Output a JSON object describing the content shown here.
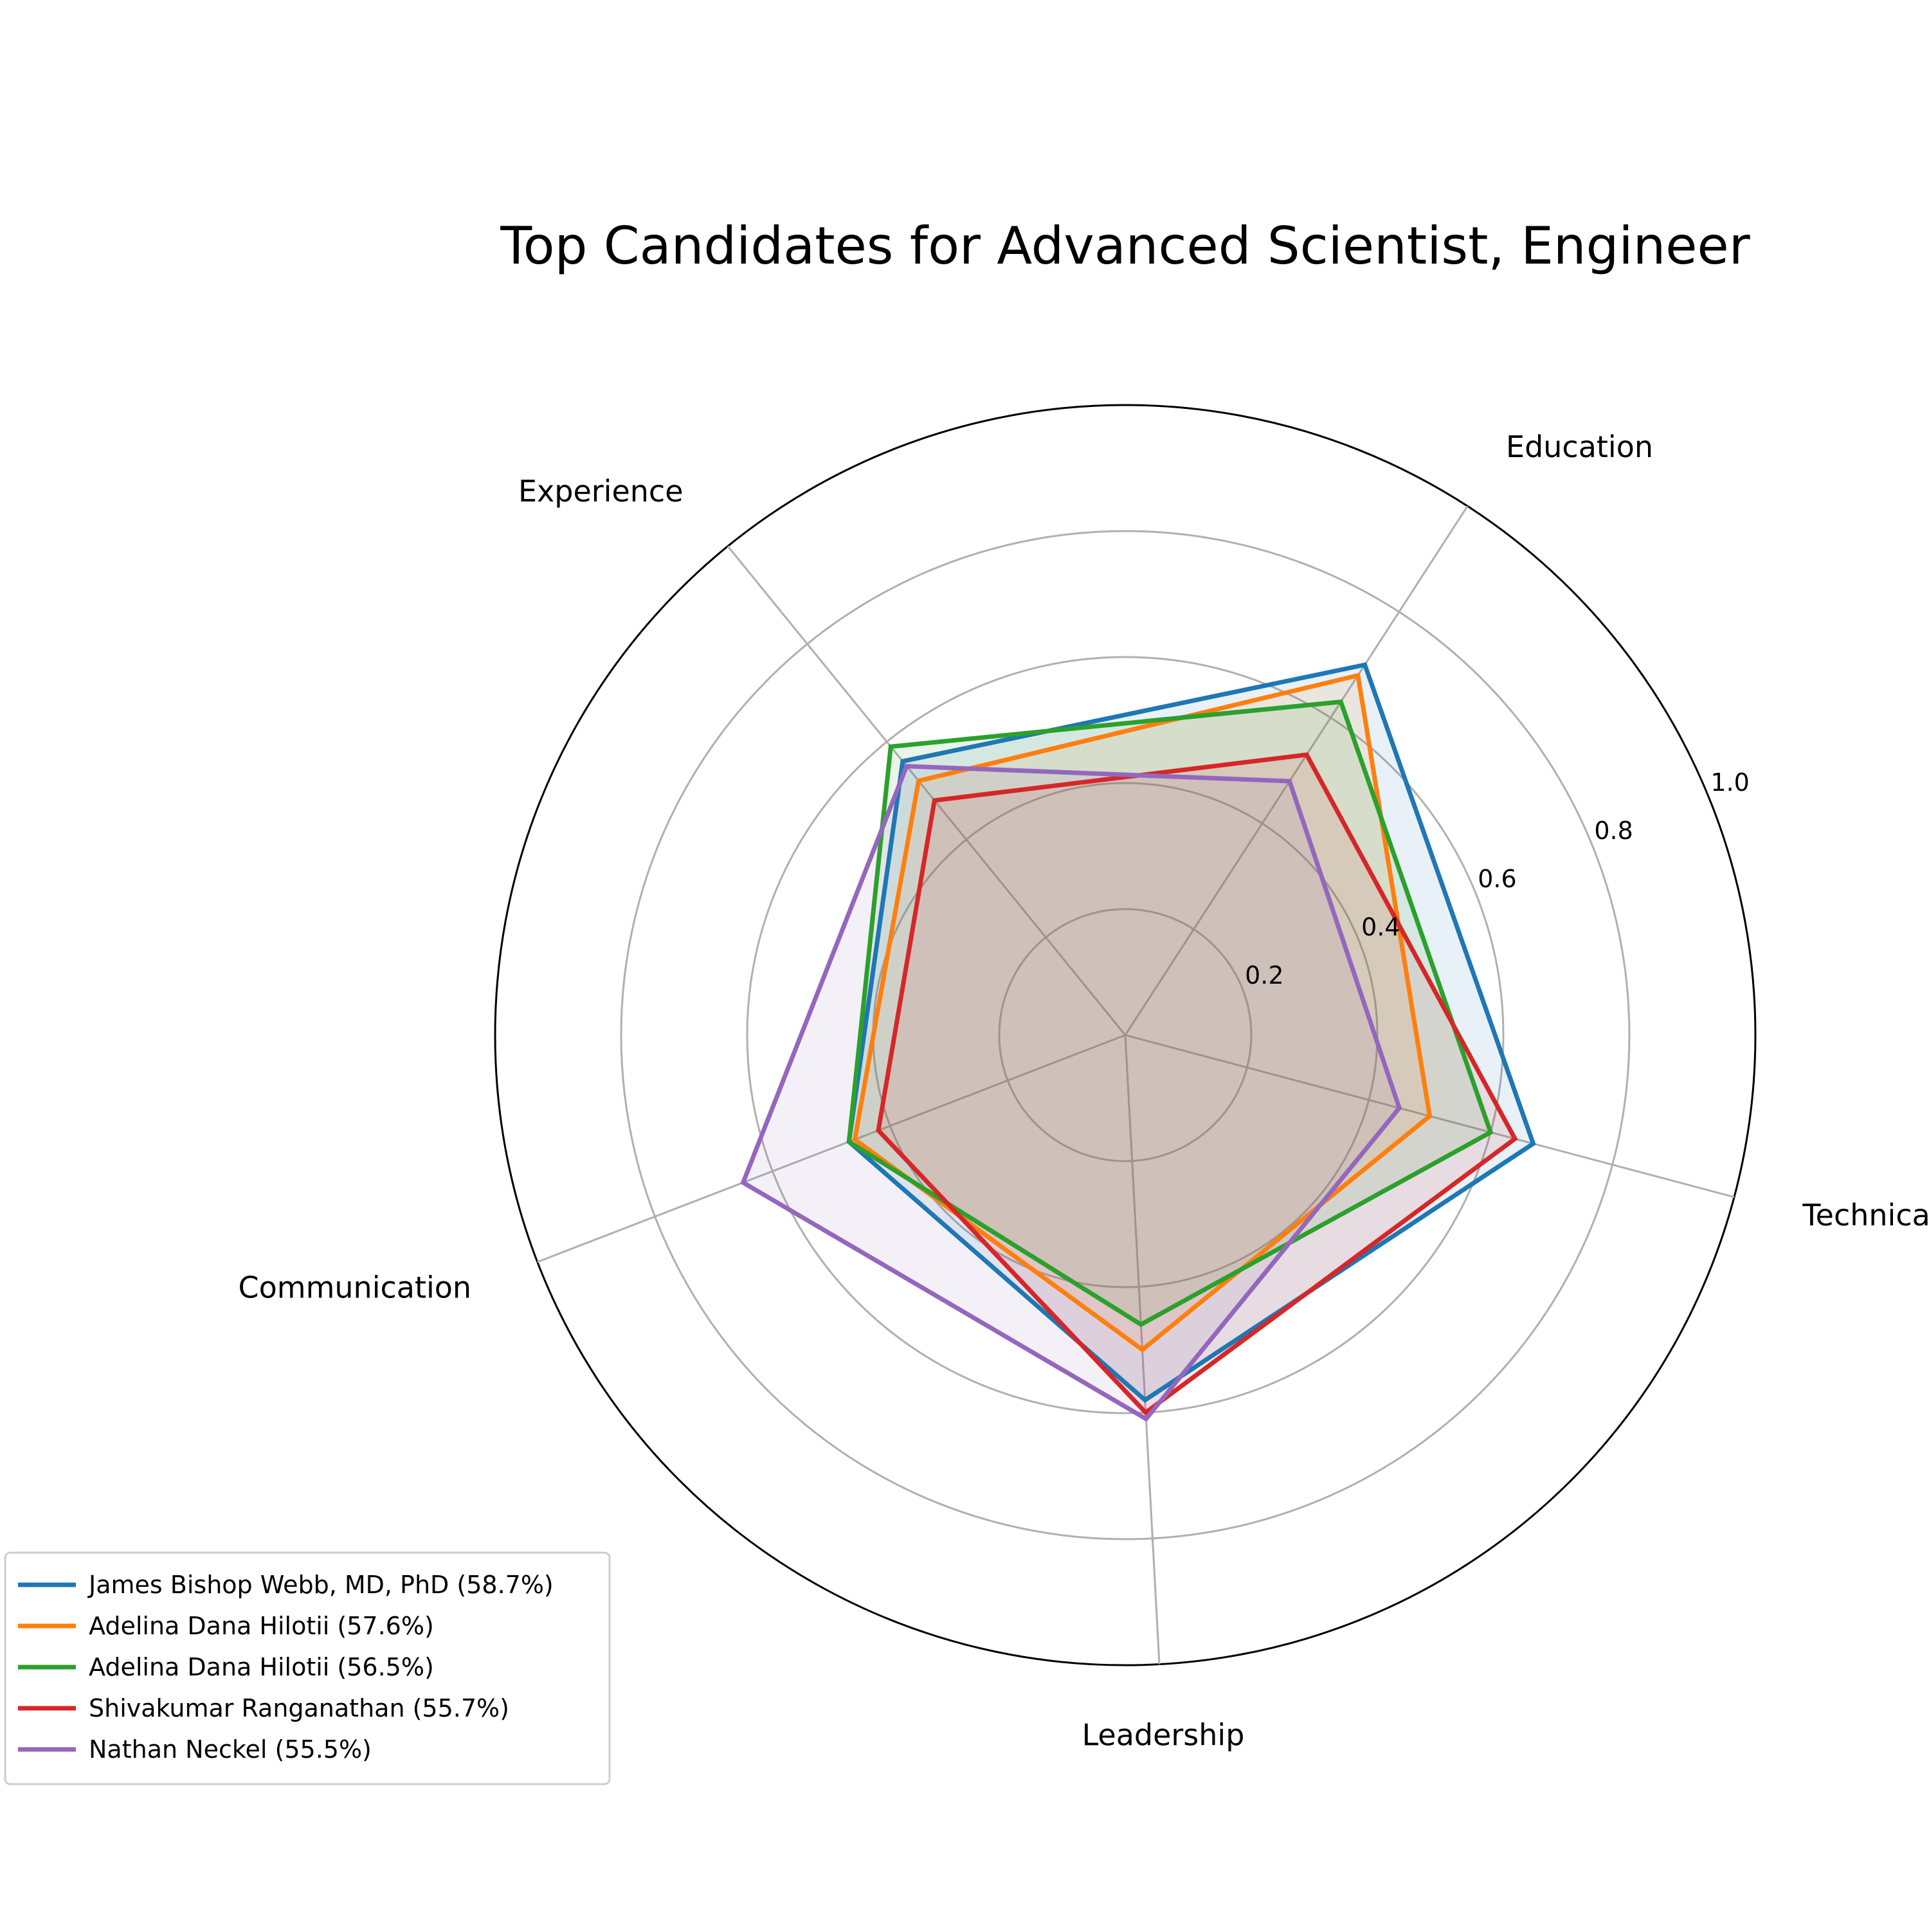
{
  "chart_data": {
    "type": "radar",
    "title": "Top Candidates for Advanced Scientist, Engineer",
    "categories": [
      "Technical Skills",
      "Education",
      "Experience",
      "Communication",
      "Leadership"
    ],
    "rlim": [
      0,
      1.0
    ],
    "rticks": [
      "0.2",
      "0.4",
      "0.6",
      "0.8",
      "1.0"
    ],
    "grid": true,
    "legend_position": "lower-left",
    "series": [
      {
        "name": "James Bishop Webb, MD, PhD (58.7%)",
        "color": "#1f77b4",
        "values": [
          0.67,
          0.7,
          0.56,
          0.47,
          0.58
        ]
      },
      {
        "name": "Adelina Dana Hilotii (57.6%)",
        "color": "#ff7f0e",
        "values": [
          0.5,
          0.68,
          0.52,
          0.46,
          0.5
        ]
      },
      {
        "name": "Adelina Dana Hilotii (56.5%)",
        "color": "#2ca02c",
        "values": [
          0.6,
          0.63,
          0.59,
          0.47,
          0.46
        ]
      },
      {
        "name": "Shivakumar Ranganathan (55.7%)",
        "color": "#d62728",
        "values": [
          0.64,
          0.53,
          0.48,
          0.42,
          0.6
        ]
      },
      {
        "name": "Nathan Neckel (55.5%)",
        "color": "#9467bd",
        "values": [
          0.45,
          0.48,
          0.55,
          0.65,
          0.61
        ]
      }
    ]
  }
}
